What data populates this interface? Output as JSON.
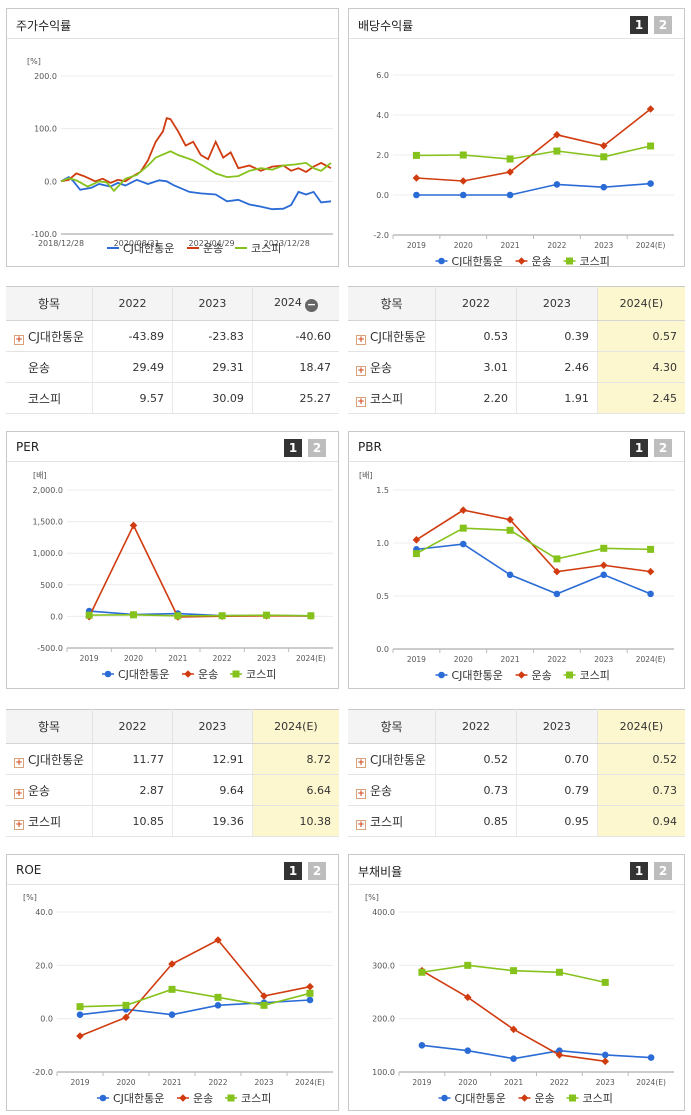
{
  "colors": {
    "cj": "#2a6bd6",
    "transport": "#d03c10",
    "kospi": "#86c21c"
  },
  "legend": [
    "CJ대한통운",
    "운송",
    "코스피"
  ],
  "stock_return": {
    "title": "주가수익률",
    "chart_data": {
      "type": "line",
      "unit_label": "[%]",
      "yticks": [
        "200.0",
        "100.0",
        "0.0",
        "-100.0"
      ],
      "ylim": [
        -100,
        200
      ],
      "xticks": [
        "2018/12/28",
        "2020/08/31",
        "2022/04/29",
        "2023/12/28"
      ],
      "x_range": [
        "2018-12-28",
        "2024-12-20"
      ],
      "series": [
        {
          "name": "CJ대한통운",
          "points": [
            [
              "2018-12-28",
              0
            ],
            [
              "2019-03-01",
              8
            ],
            [
              "2019-04-01",
              2
            ],
            [
              "2019-06-01",
              -16
            ],
            [
              "2019-09-01",
              -12
            ],
            [
              "2019-11-01",
              -5
            ],
            [
              "2020-02-01",
              -10
            ],
            [
              "2020-04-01",
              -3
            ],
            [
              "2020-06-01",
              -8
            ],
            [
              "2020-09-01",
              3
            ],
            [
              "2020-12-01",
              -5
            ],
            [
              "2021-03-01",
              2
            ],
            [
              "2021-05-01",
              0
            ],
            [
              "2021-07-01",
              -8
            ],
            [
              "2021-09-01",
              -14
            ],
            [
              "2021-11-01",
              -20
            ],
            [
              "2022-02-01",
              -23
            ],
            [
              "2022-06-01",
              -25
            ],
            [
              "2022-09-01",
              -38
            ],
            [
              "2022-12-01",
              -35
            ],
            [
              "2023-03-01",
              -44
            ],
            [
              "2023-06-01",
              -48
            ],
            [
              "2023-09-01",
              -53
            ],
            [
              "2023-12-01",
              -52
            ],
            [
              "2024-02-01",
              -45
            ],
            [
              "2024-04-01",
              -20
            ],
            [
              "2024-06-01",
              -25
            ],
            [
              "2024-08-01",
              -20
            ],
            [
              "2024-10-01",
              -40
            ],
            [
              "2024-12-20",
              -38
            ]
          ]
        },
        {
          "name": "운송",
          "points": [
            [
              "2018-12-28",
              0
            ],
            [
              "2019-03-01",
              3
            ],
            [
              "2019-05-01",
              15
            ],
            [
              "2019-07-01",
              10
            ],
            [
              "2019-10-01",
              0
            ],
            [
              "2019-12-01",
              5
            ],
            [
              "2020-02-01",
              -3
            ],
            [
              "2020-04-01",
              3
            ],
            [
              "2020-06-01",
              0
            ],
            [
              "2020-08-01",
              10
            ],
            [
              "2020-10-01",
              18
            ],
            [
              "2020-12-01",
              40
            ],
            [
              "2021-02-01",
              75
            ],
            [
              "2021-04-01",
              95
            ],
            [
              "2021-05-01",
              120
            ],
            [
              "2021-06-01",
              118
            ],
            [
              "2021-08-01",
              95
            ],
            [
              "2021-10-01",
              68
            ],
            [
              "2021-12-01",
              75
            ],
            [
              "2022-02-01",
              50
            ],
            [
              "2022-04-01",
              42
            ],
            [
              "2022-06-01",
              75
            ],
            [
              "2022-08-01",
              45
            ],
            [
              "2022-10-01",
              55
            ],
            [
              "2022-12-01",
              25
            ],
            [
              "2023-03-01",
              30
            ],
            [
              "2023-06-01",
              20
            ],
            [
              "2023-09-01",
              28
            ],
            [
              "2023-12-01",
              30
            ],
            [
              "2024-02-01",
              20
            ],
            [
              "2024-04-01",
              25
            ],
            [
              "2024-06-01",
              18
            ],
            [
              "2024-08-01",
              28
            ],
            [
              "2024-10-01",
              35
            ],
            [
              "2024-12-20",
              25
            ]
          ]
        },
        {
          "name": "코스피",
          "points": [
            [
              "2018-12-28",
              0
            ],
            [
              "2019-03-01",
              6
            ],
            [
              "2019-05-01",
              2
            ],
            [
              "2019-08-01",
              -10
            ],
            [
              "2019-11-01",
              0
            ],
            [
              "2020-01-01",
              -2
            ],
            [
              "2020-03-01",
              -18
            ],
            [
              "2020-06-01",
              5
            ],
            [
              "2020-09-01",
              12
            ],
            [
              "2020-12-01",
              30
            ],
            [
              "2021-02-01",
              45
            ],
            [
              "2021-06-01",
              57
            ],
            [
              "2021-08-01",
              50
            ],
            [
              "2021-10-01",
              45
            ],
            [
              "2021-12-01",
              40
            ],
            [
              "2022-03-01",
              28
            ],
            [
              "2022-06-01",
              15
            ],
            [
              "2022-09-01",
              8
            ],
            [
              "2022-12-01",
              10
            ],
            [
              "2023-03-01",
              20
            ],
            [
              "2023-06-01",
              25
            ],
            [
              "2023-09-01",
              22
            ],
            [
              "2023-12-01",
              30
            ],
            [
              "2024-03-01",
              32
            ],
            [
              "2024-06-01",
              35
            ],
            [
              "2024-08-01",
              25
            ],
            [
              "2024-10-01",
              20
            ],
            [
              "2024-12-20",
              35
            ]
          ]
        }
      ]
    },
    "table": {
      "headers": [
        "항목",
        "2022",
        "2023",
        "2024"
      ],
      "rows": [
        {
          "label": "CJ대한통운",
          "values": [
            "-43.89",
            "-23.83",
            "-40.60"
          ]
        },
        {
          "label": "운송",
          "values": [
            "29.49",
            "29.31",
            "18.47"
          ]
        },
        {
          "label": "코스피",
          "values": [
            "9.57",
            "30.09",
            "25.27"
          ]
        }
      ]
    }
  },
  "dividend_yield": {
    "title": "배당수익률",
    "pages": [
      "1",
      "2"
    ],
    "chart_data": {
      "type": "line",
      "categories": [
        "2019",
        "2020",
        "2021",
        "2022",
        "2023",
        "2024(E)"
      ],
      "yticks": [
        "6.0",
        "4.0",
        "2.0",
        "0.0",
        "-2.0"
      ],
      "ylim": [
        -2,
        6
      ],
      "series": [
        {
          "name": "CJ대한통운",
          "values": [
            0,
            0,
            0,
            0.53,
            0.39,
            0.57
          ]
        },
        {
          "name": "운송",
          "values": [
            0.85,
            0.7,
            1.15,
            3.01,
            2.46,
            4.3
          ]
        },
        {
          "name": "코스피",
          "values": [
            1.98,
            2.0,
            1.8,
            2.2,
            1.91,
            2.45
          ]
        }
      ]
    },
    "table": {
      "headers": [
        "항목",
        "2022",
        "2023",
        "2024(E)"
      ],
      "rows": [
        {
          "label": "CJ대한통운",
          "values": [
            "0.53",
            "0.39",
            "0.57"
          ]
        },
        {
          "label": "운송",
          "values": [
            "3.01",
            "2.46",
            "4.30"
          ]
        },
        {
          "label": "코스피",
          "values": [
            "2.20",
            "1.91",
            "2.45"
          ]
        }
      ]
    }
  },
  "per": {
    "title": "PER",
    "pages": [
      "1",
      "2"
    ],
    "chart_data": {
      "type": "line",
      "unit_label": "[배]",
      "categories": [
        "2019",
        "2020",
        "2021",
        "2022",
        "2023",
        "2024(E)"
      ],
      "yticks": [
        "2,000.0",
        "1,500.0",
        "1,000.0",
        "500.0",
        "0.0",
        "-500.0"
      ],
      "ylim": [
        -500,
        2000
      ],
      "series": [
        {
          "name": "CJ대한통운",
          "values": [
            85,
            30,
            45,
            11.77,
            12.91,
            8.72
          ]
        },
        {
          "name": "운송",
          "values": [
            -5,
            1440,
            -8,
            2.87,
            9.64,
            6.64
          ]
        },
        {
          "name": "코스피",
          "values": [
            20,
            25,
            10,
            10.85,
            19.36,
            10.38
          ]
        }
      ]
    },
    "table": {
      "headers": [
        "항목",
        "2022",
        "2023",
        "2024(E)"
      ],
      "rows": [
        {
          "label": "CJ대한통운",
          "values": [
            "11.77",
            "12.91",
            "8.72"
          ]
        },
        {
          "label": "운송",
          "values": [
            "2.87",
            "9.64",
            "6.64"
          ]
        },
        {
          "label": "코스피",
          "values": [
            "10.85",
            "19.36",
            "10.38"
          ]
        }
      ]
    }
  },
  "pbr": {
    "title": "PBR",
    "pages": [
      "1",
      "2"
    ],
    "chart_data": {
      "type": "line",
      "unit_label": "[배]",
      "categories": [
        "2019",
        "2020",
        "2021",
        "2022",
        "2023",
        "2024(E)"
      ],
      "yticks": [
        "1.5",
        "1.0",
        "0.5",
        "0.0"
      ],
      "ylim": [
        0,
        1.5
      ],
      "series": [
        {
          "name": "CJ대한통운",
          "values": [
            0.94,
            0.99,
            0.7,
            0.52,
            0.7,
            0.52
          ]
        },
        {
          "name": "운송",
          "values": [
            1.03,
            1.31,
            1.22,
            0.73,
            0.79,
            0.73
          ]
        },
        {
          "name": "코스피",
          "values": [
            0.9,
            1.14,
            1.12,
            0.85,
            0.95,
            0.94
          ]
        }
      ]
    },
    "table": {
      "headers": [
        "항목",
        "2022",
        "2023",
        "2024(E)"
      ],
      "rows": [
        {
          "label": "CJ대한통운",
          "values": [
            "0.52",
            "0.70",
            "0.52"
          ]
        },
        {
          "label": "운송",
          "values": [
            "0.73",
            "0.79",
            "0.73"
          ]
        },
        {
          "label": "코스피",
          "values": [
            "0.85",
            "0.95",
            "0.94"
          ]
        }
      ]
    }
  },
  "roe": {
    "title": "ROE",
    "pages": [
      "1",
      "2"
    ],
    "chart_data": {
      "type": "line",
      "unit_label": "[%]",
      "categories": [
        "2019",
        "2020",
        "2021",
        "2022",
        "2023",
        "2024(E)"
      ],
      "yticks": [
        "40.0",
        "20.0",
        "0.0",
        "-20.0"
      ],
      "ylim": [
        -20,
        40
      ],
      "series": [
        {
          "name": "CJ대한통운",
          "values": [
            1.5,
            3.5,
            1.5,
            5.0,
            6.0,
            7.0
          ]
        },
        {
          "name": "운송",
          "values": [
            -6.5,
            0.5,
            20.5,
            29.5,
            8.5,
            12.0
          ]
        },
        {
          "name": "코스피",
          "values": [
            4.5,
            5.0,
            11.0,
            8.0,
            5.0,
            9.5
          ]
        }
      ]
    }
  },
  "debt_ratio": {
    "title": "부채비율",
    "pages": [
      "1",
      "2"
    ],
    "chart_data": {
      "type": "line",
      "unit_label": "[%]",
      "categories": [
        "2019",
        "2020",
        "2021",
        "2022",
        "2023",
        "2024(E)"
      ],
      "yticks": [
        "400.0",
        "300.0",
        "200.0",
        "100.0"
      ],
      "ylim": [
        100,
        400
      ],
      "series": [
        {
          "name": "CJ대한통운",
          "values": [
            150,
            140,
            125,
            140,
            132,
            127
          ]
        },
        {
          "name": "운송",
          "values": [
            290,
            240,
            180,
            132,
            120,
            null
          ]
        },
        {
          "name": "코스피",
          "values": [
            287,
            300,
            290,
            287,
            268,
            null
          ]
        }
      ]
    }
  }
}
